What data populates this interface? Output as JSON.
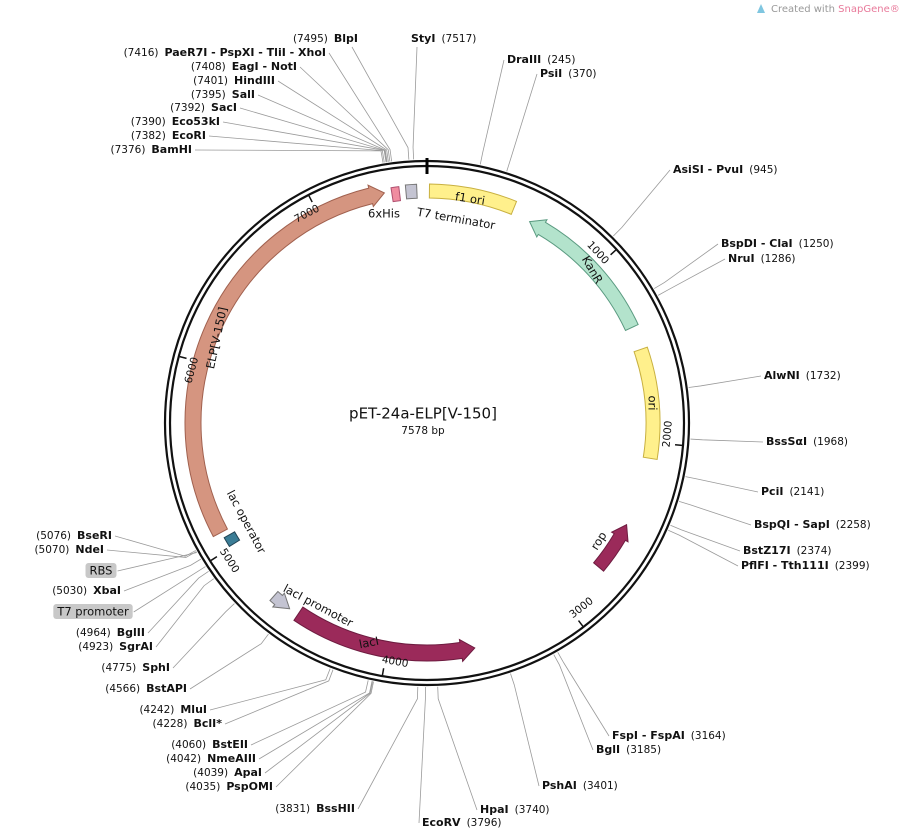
{
  "credit": {
    "prefix": "Created with",
    "brand": "SnapGene®"
  },
  "map": {
    "name": "pET-24a-ELP[V-150]",
    "length": 7578,
    "unit": "bp",
    "ticks": [
      1000,
      2000,
      3000,
      4000,
      5000,
      6000,
      7000
    ],
    "features": [
      {
        "name": "6xHis"
      },
      {
        "name": "T7 terminator"
      },
      {
        "name": "f1 ori"
      },
      {
        "name": "KanR"
      },
      {
        "name": "ori"
      },
      {
        "name": "rop"
      },
      {
        "name": "lacI"
      },
      {
        "name": "lacI promoter"
      },
      {
        "name": "lac operator"
      },
      {
        "name": "ELP[V-150]"
      },
      {
        "name": "RBS"
      },
      {
        "name": "T7 promoter"
      }
    ],
    "sites": [
      {
        "name": "StyI",
        "position": {
          "value": 7517,
          "label": "(7517)"
        }
      },
      {
        "name": "DraIII",
        "position": {
          "value": 245,
          "label": "(245)"
        }
      },
      {
        "name": "PsiI",
        "position": {
          "value": 370,
          "label": "(370)"
        }
      },
      {
        "name": "AsiSI - PvuI",
        "position": {
          "value": 945,
          "label": "(945)"
        }
      },
      {
        "name": "BspDI - ClaI",
        "position": {
          "value": 1250,
          "label": "(1250)"
        }
      },
      {
        "name": "NruI",
        "position": {
          "value": 1286,
          "label": "(1286)"
        }
      },
      {
        "name": "AlwNI",
        "position": {
          "value": 1732,
          "label": "(1732)"
        }
      },
      {
        "name": "BssSαI",
        "position": {
          "value": 1968,
          "label": "(1968)"
        }
      },
      {
        "name": "PciI",
        "position": {
          "value": 2141,
          "label": "(2141)"
        }
      },
      {
        "name": "BspQI - SapI",
        "position": {
          "value": 2258,
          "label": "(2258)"
        }
      },
      {
        "name": "BstZ17I",
        "position": {
          "value": 2374,
          "label": "(2374)"
        }
      },
      {
        "name": "PflFI - Tth111I",
        "position": {
          "value": 2399,
          "label": "(2399)"
        }
      },
      {
        "name": "FspI - FspAI",
        "position": {
          "value": 3164,
          "label": "(3164)"
        }
      },
      {
        "name": "BglI",
        "position": {
          "value": 3185,
          "label": "(3185)"
        }
      },
      {
        "name": "PshAI",
        "position": {
          "value": 3401,
          "label": "(3401)"
        }
      },
      {
        "name": "HpaI",
        "position": {
          "value": 3740,
          "label": "(3740)"
        }
      },
      {
        "name": "EcoRV",
        "position": {
          "value": 3796,
          "label": "(3796)"
        }
      },
      {
        "name": "BlpI",
        "position": {
          "value": 7495,
          "label": "(7495)"
        }
      },
      {
        "name": "PaeR7I - PspXI - TliI - XhoI",
        "position": {
          "value": 7416,
          "label": "(7416)"
        }
      },
      {
        "name": "EagI - NotI",
        "position": {
          "value": 7408,
          "label": "(7408)"
        }
      },
      {
        "name": "HindIII",
        "position": {
          "value": 7401,
          "label": "(7401)"
        }
      },
      {
        "name": "SalI",
        "position": {
          "value": 7395,
          "label": "(7395)"
        }
      },
      {
        "name": "SacI",
        "position": {
          "value": 7392,
          "label": "(7392)"
        }
      },
      {
        "name": "Eco53kI",
        "position": {
          "value": 7390,
          "label": "(7390)"
        }
      },
      {
        "name": "EcoRI",
        "position": {
          "value": 7382,
          "label": "(7382)"
        }
      },
      {
        "name": "BamHI",
        "position": {
          "value": 7376,
          "label": "(7376)"
        }
      },
      {
        "name": "BseRI",
        "position": {
          "value": 5076,
          "label": "(5076)"
        }
      },
      {
        "name": "NdeI",
        "position": {
          "value": 5070,
          "label": "(5070)"
        }
      },
      {
        "name": "XbaI",
        "position": {
          "value": 5030,
          "label": "(5030)"
        }
      },
      {
        "name": "BglII",
        "position": {
          "value": 4964,
          "label": "(4964)"
        }
      },
      {
        "name": "SgrAI",
        "position": {
          "value": 4923,
          "label": "(4923)"
        }
      },
      {
        "name": "SphI",
        "position": {
          "value": 4775,
          "label": "(4775)"
        }
      },
      {
        "name": "BstAPI",
        "position": {
          "value": 4566,
          "label": "(4566)"
        }
      },
      {
        "name": "MluI",
        "position": {
          "value": 4242,
          "label": "(4242)"
        }
      },
      {
        "name": "BclI*",
        "position": {
          "value": 4228,
          "label": "(4228)"
        }
      },
      {
        "name": "BstEII",
        "position": {
          "value": 4060,
          "label": "(4060)"
        }
      },
      {
        "name": "NmeAIII",
        "position": {
          "value": 4042,
          "label": "(4042)"
        }
      },
      {
        "name": "ApaI",
        "position": {
          "value": 4039,
          "label": "(4039)"
        }
      },
      {
        "name": "PspOMI",
        "position": {
          "value": 4035,
          "label": "(4035)"
        }
      },
      {
        "name": "BssHII",
        "position": {
          "value": 3831,
          "label": "(3831)"
        }
      }
    ]
  }
}
